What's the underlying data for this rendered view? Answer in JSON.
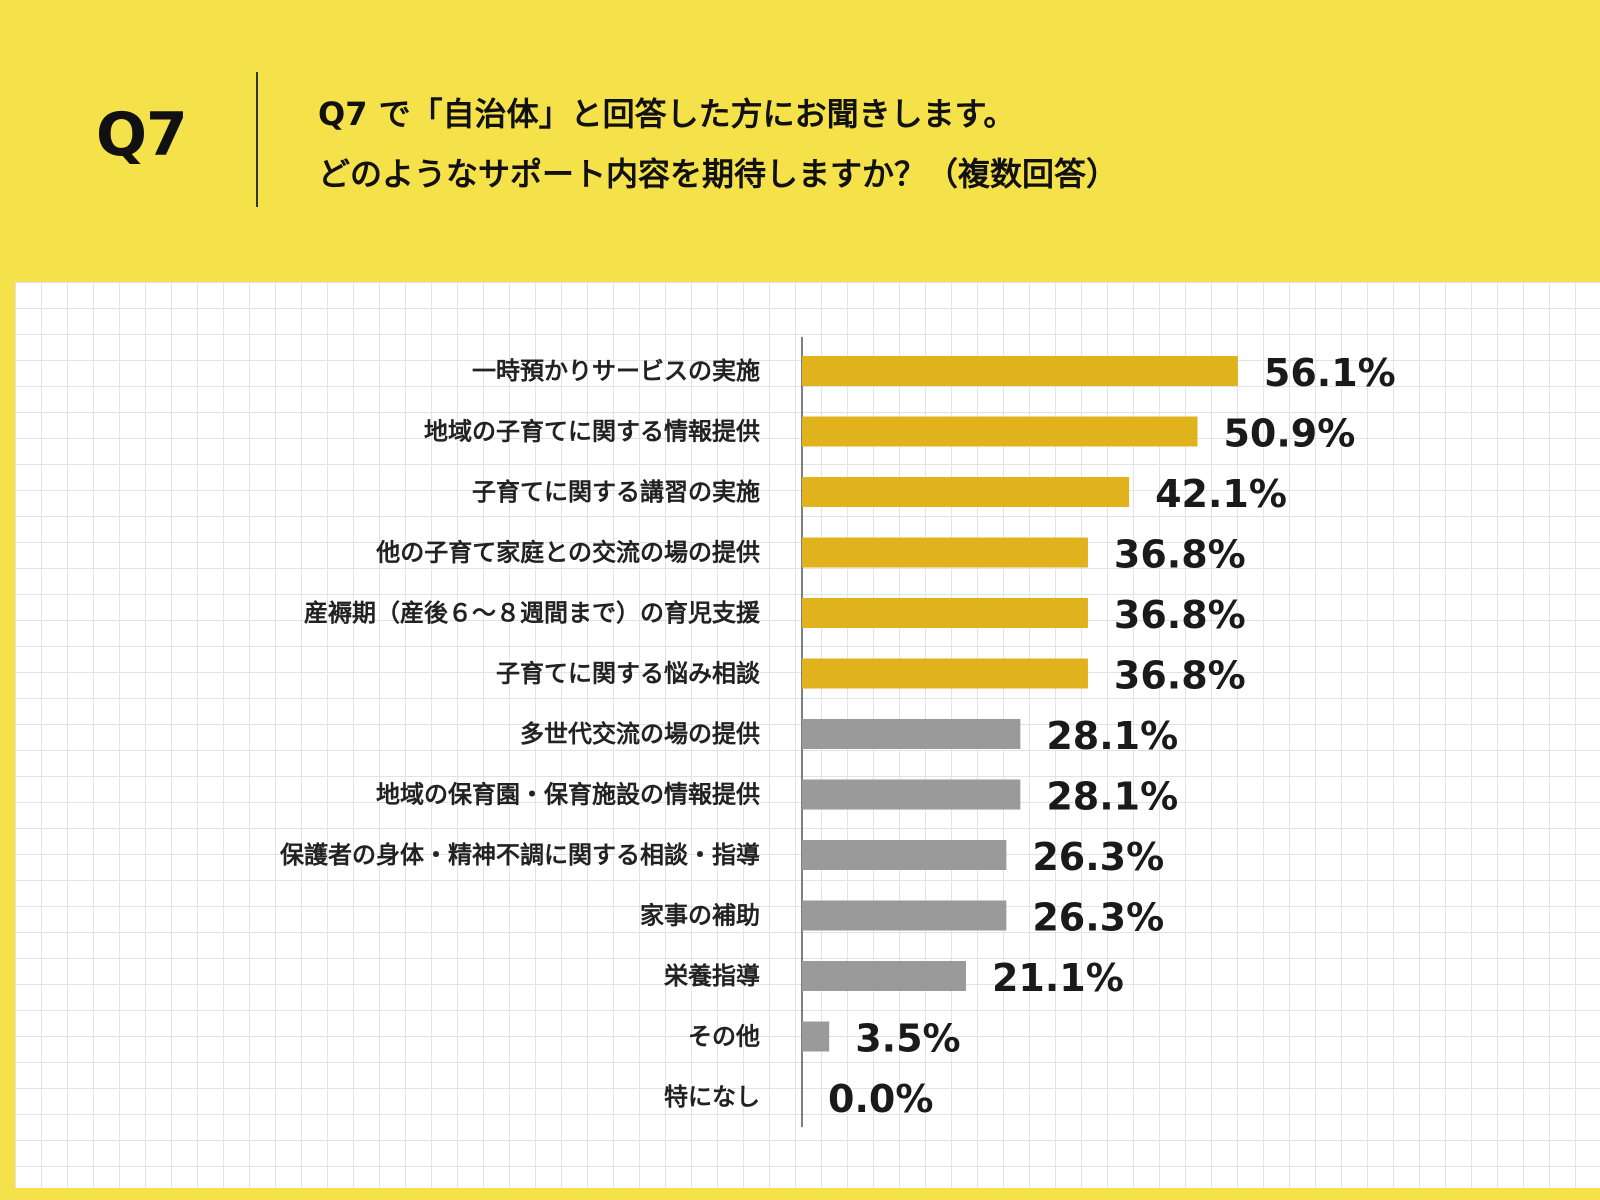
{
  "header": {
    "question_number": "Q7",
    "question_line1": "Q7 で「自治体」と回答した方にお聞きします。",
    "question_line2": "どのようなサポート内容を期待しますか？（複数回答）"
  },
  "colors": {
    "background": "#f5e14a",
    "highlight_bar": "#e0b21c",
    "other_bar": "#9a9a9a",
    "axis": "#555555"
  },
  "chart_data": {
    "type": "bar",
    "orientation": "horizontal",
    "categories": [
      "一時預かりサービスの実施",
      "地域の子育てに関する情報提供",
      "子育てに関する講習の実施",
      "他の子育て家庭との交流の場の提供",
      "産褥期（産後６～８週間まで）の育児支援",
      "子育てに関する悩み相談",
      "多世代交流の場の提供",
      "地域の保育園・保育施設の情報提供",
      "保護者の身体・精神不調に関する相談・指導",
      "家事の補助",
      "栄養指導",
      "その他",
      "特になし"
    ],
    "values": [
      56.1,
      50.9,
      42.1,
      36.8,
      36.8,
      36.8,
      28.1,
      28.1,
      26.3,
      26.3,
      21.1,
      3.5,
      0.0
    ],
    "value_labels": [
      "56.1%",
      "50.9%",
      "42.1%",
      "36.8%",
      "36.8%",
      "36.8%",
      "28.1%",
      "28.1%",
      "26.3%",
      "26.3%",
      "21.1%",
      "3.5%",
      "0.0%"
    ],
    "highlight_top_n": 6,
    "xlim": [
      0,
      100
    ],
    "grid": true,
    "legend": "none",
    "title": "",
    "xlabel": "",
    "ylabel": ""
  }
}
